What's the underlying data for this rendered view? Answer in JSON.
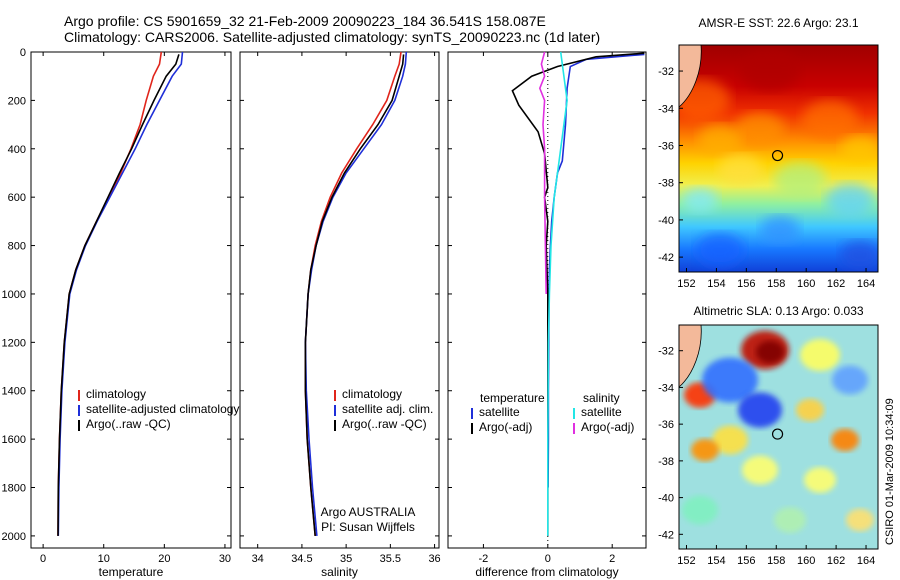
{
  "header": {
    "line1": "Argo profile: CS 5901659_32 21-Feb-2009 20090223_184 36.541S 158.087E",
    "line2": "Climatology: CARS2006. Satellite-adjusted climatology: synTS_20090223.nc (1d later)"
  },
  "side_text": "CSIRO 01-Mar-2009 10:34:09",
  "colors": {
    "red": "#e0251b",
    "blue": "#1f2fd8",
    "black": "#000000",
    "cyan": "#22e6e6",
    "magenta": "#e030e0"
  },
  "chart_data": [
    {
      "type": "line",
      "xlabel": "temperature",
      "xlim": [
        -2,
        31
      ],
      "xticks": [
        "0",
        "10",
        "20",
        "30"
      ],
      "ylim": [
        2050,
        0
      ],
      "yticks": [
        "0",
        "200",
        "400",
        "600",
        "800",
        "1000",
        "1200",
        "1400",
        "1600",
        "1800",
        "2000"
      ],
      "legend": [
        "climatology",
        "satellite-adjusted climatology",
        "Argo(..raw -QC)"
      ],
      "series": [
        {
          "name": "climatology",
          "color": "red",
          "x": [
            19.5,
            19.2,
            18.2,
            17.0,
            16.0,
            14.5,
            12.8,
            10.8,
            8.8,
            6.9,
            5.4,
            4.3,
            3.5,
            3.0,
            2.7,
            2.5,
            2.45
          ],
          "y": [
            0,
            50,
            100,
            200,
            300,
            400,
            500,
            600,
            700,
            800,
            900,
            1000,
            1200,
            1400,
            1600,
            1800,
            2000
          ]
        },
        {
          "name": "satellite-adjusted climatology",
          "color": "blue",
          "x": [
            23.0,
            22.8,
            21.3,
            19.2,
            17.1,
            15.2,
            13.1,
            11.0,
            8.9,
            7.0,
            5.5,
            4.4,
            3.6,
            3.1,
            2.8,
            2.6,
            2.5
          ],
          "y": [
            0,
            50,
            100,
            200,
            300,
            400,
            500,
            600,
            700,
            800,
            900,
            1000,
            1200,
            1400,
            1600,
            1800,
            2000
          ]
        },
        {
          "name": "Argo(..raw -QC)",
          "color": "black",
          "x": [
            22.4,
            21.9,
            20.3,
            18.3,
            16.4,
            14.6,
            12.6,
            10.7,
            8.8,
            6.9,
            5.4,
            4.3,
            3.5,
            3.0,
            2.7,
            2.5,
            2.45
          ],
          "y": [
            10,
            50,
            100,
            200,
            300,
            400,
            500,
            600,
            700,
            800,
            900,
            1000,
            1200,
            1400,
            1600,
            1800,
            2000
          ]
        }
      ]
    },
    {
      "type": "line",
      "xlabel": "salinity",
      "xlim": [
        33.8,
        36.05
      ],
      "xticks": [
        "34",
        "34.5",
        "35",
        "35.5",
        "36"
      ],
      "ylim": [
        2050,
        0
      ],
      "legend": [
        "climatology",
        "satellite adj. clim.",
        "Argo(..raw -QC)"
      ],
      "annotations": [
        "Argo AUSTRALIA",
        "PI: Susan Wijffels"
      ],
      "series": [
        {
          "name": "climatology",
          "color": "red",
          "x": [
            35.62,
            35.6,
            35.55,
            35.46,
            35.3,
            35.12,
            34.95,
            34.82,
            34.72,
            34.65,
            34.6,
            34.57,
            34.54,
            34.54,
            34.56,
            34.6,
            34.65
          ],
          "y": [
            0,
            50,
            100,
            200,
            300,
            400,
            500,
            600,
            700,
            800,
            900,
            1000,
            1200,
            1400,
            1600,
            1800,
            2000
          ]
        },
        {
          "name": "satellite adj. clim.",
          "color": "blue",
          "x": [
            35.68,
            35.67,
            35.64,
            35.55,
            35.4,
            35.2,
            35.0,
            34.85,
            34.74,
            34.66,
            34.61,
            34.57,
            34.54,
            34.55,
            34.58,
            34.62,
            34.67
          ],
          "y": [
            0,
            50,
            100,
            200,
            300,
            400,
            500,
            600,
            700,
            800,
            900,
            1000,
            1200,
            1400,
            1600,
            1800,
            2000
          ]
        },
        {
          "name": "Argo(..raw -QC)",
          "color": "black",
          "x": [
            35.65,
            35.64,
            35.6,
            35.52,
            35.36,
            35.16,
            34.98,
            34.84,
            34.73,
            34.66,
            34.6,
            34.57,
            34.54,
            34.54,
            34.56,
            34.6,
            34.65
          ],
          "y": [
            10,
            50,
            100,
            200,
            300,
            400,
            500,
            600,
            700,
            800,
            900,
            1000,
            1200,
            1400,
            1600,
            1800,
            2000
          ]
        }
      ]
    },
    {
      "type": "line",
      "xlabel": "difference from climatology",
      "xlim": [
        -3.1,
        3.05
      ],
      "xticks": [
        "-2",
        "0",
        "2"
      ],
      "ylim": [
        2050,
        0
      ],
      "legend": [
        "temperature",
        "satellite",
        "Argo(-adj)",
        "salinity",
        "satellite",
        "Argo(-adj)"
      ],
      "series": [
        {
          "name": "temperature satellite",
          "color": "blue",
          "x": [
            3.0,
            1.2,
            0.7,
            0.6,
            0.55,
            0.45,
            0.3,
            0.2,
            0.12,
            0.08,
            0.05,
            0.04,
            0.03,
            0.02,
            0.02,
            0.01
          ],
          "y": [
            10,
            30,
            60,
            150,
            300,
            450,
            500,
            600,
            700,
            800,
            900,
            1000,
            1200,
            1400,
            1600,
            1800
          ]
        },
        {
          "name": "temperature Argo(-adj)",
          "color": "black",
          "x": [
            3.0,
            1.5,
            0.3,
            -0.5,
            -1.1,
            -0.9,
            -0.3,
            -0.1,
            0.0,
            -0.1,
            0.0,
            -0.05,
            0.0,
            0.0,
            0.0
          ],
          "y": [
            5,
            20,
            60,
            100,
            160,
            220,
            330,
            420,
            560,
            600,
            700,
            800,
            1000,
            1400,
            2000
          ]
        },
        {
          "name": "salinity satellite",
          "color": "cyan",
          "x": [
            0.4,
            0.5,
            0.6,
            0.5,
            0.4,
            0.3,
            0.2,
            0.1,
            0.05,
            0.02,
            0.0,
            0.0
          ],
          "y": [
            0,
            100,
            200,
            300,
            400,
            500,
            600,
            800,
            1000,
            1200,
            1600,
            2000
          ]
        },
        {
          "name": "salinity Argo(-adj)",
          "color": "magenta",
          "x": [
            -0.1,
            -0.2,
            -0.1,
            -0.25,
            -0.1,
            -0.15,
            -0.1,
            -0.1,
            -0.05
          ],
          "y": [
            0,
            50,
            100,
            150,
            200,
            300,
            400,
            600,
            1000
          ]
        }
      ]
    },
    {
      "type": "heatmap",
      "title": "AMSR-E SST: 22.6 Argo: 23.1",
      "xticks": [
        "152",
        "154",
        "156",
        "158",
        "160",
        "162",
        "164"
      ],
      "yticks": [
        "-32",
        "-34",
        "-36",
        "-38",
        "-40",
        "-42"
      ],
      "xlim": [
        151.5,
        164.8
      ],
      "ylim": [
        -42.8,
        -30.6
      ],
      "marker": {
        "lon": 158.087,
        "lat": -36.541
      }
    },
    {
      "type": "heatmap",
      "title": "Altimetric SLA: 0.13 Argo: 0.033",
      "xticks": [
        "152",
        "154",
        "156",
        "158",
        "160",
        "162",
        "164"
      ],
      "yticks": [
        "-32",
        "-34",
        "-36",
        "-38",
        "-40",
        "-42"
      ],
      "xlim": [
        151.5,
        164.8
      ],
      "ylim": [
        -42.8,
        -30.6
      ],
      "marker": {
        "lon": 158.087,
        "lat": -36.541
      }
    }
  ]
}
